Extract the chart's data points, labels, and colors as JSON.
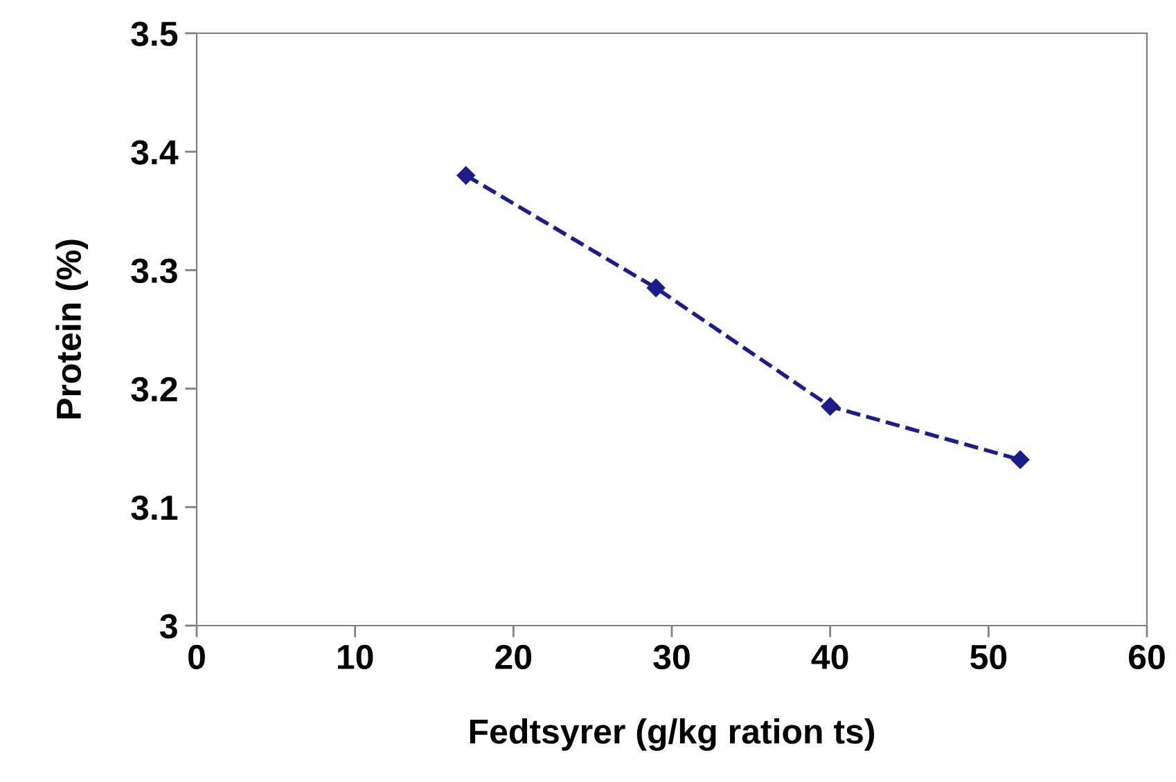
{
  "chart_data": {
    "type": "line",
    "xlabel": "Fedtsyrer (g/kg ration ts)",
    "ylabel": "Protein (%)",
    "x": [
      17,
      29,
      40,
      52
    ],
    "series": [
      {
        "color": "#1c1c8a",
        "values": [
          3.38,
          3.285,
          3.185,
          3.14
        ]
      }
    ],
    "xlim": [
      0,
      60
    ],
    "xticks": [
      0,
      10,
      20,
      30,
      40,
      50,
      60
    ],
    "ylim": [
      3,
      3.5
    ],
    "yticks": [
      3,
      3.1,
      3.2,
      3.3,
      3.4,
      3.5
    ],
    "grid": false,
    "legend": false,
    "marker": "diamond",
    "line_style": "dashed"
  }
}
